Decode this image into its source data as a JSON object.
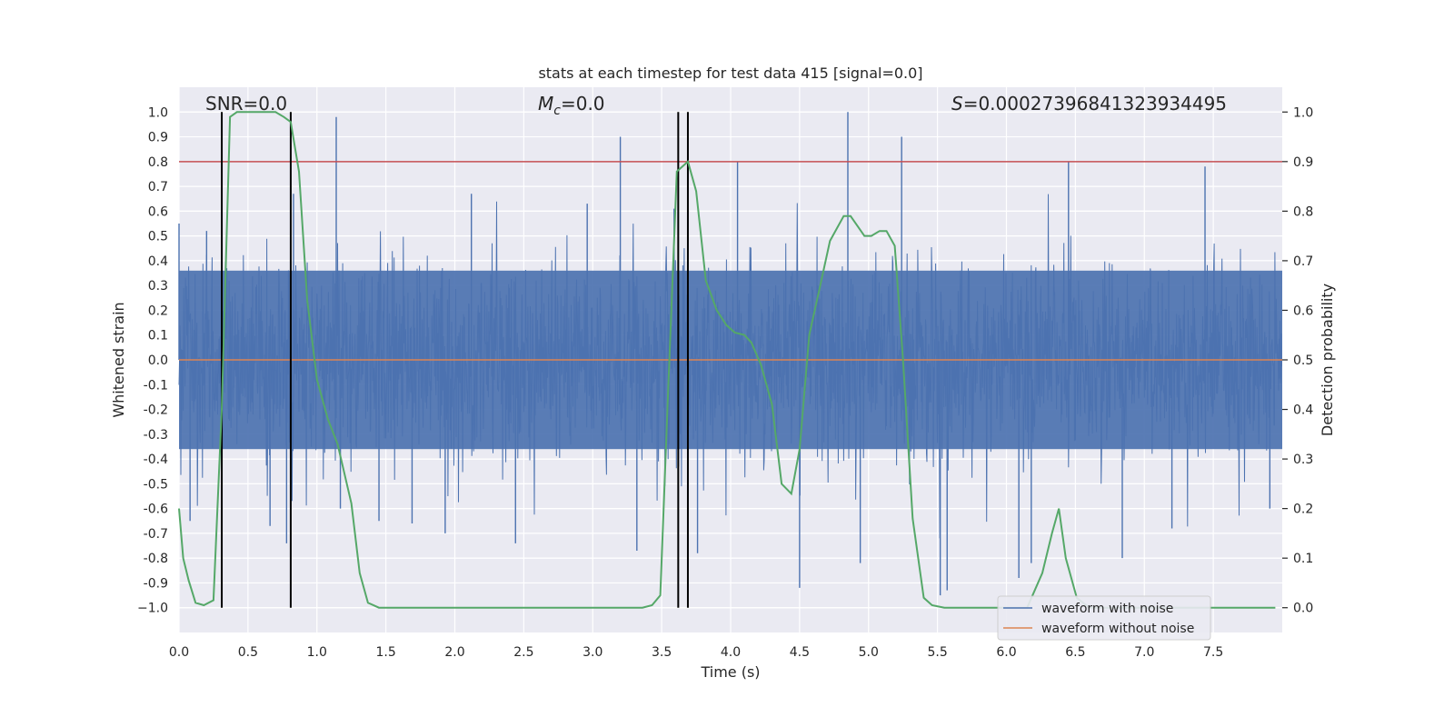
{
  "chart_data": {
    "type": "line",
    "title": "stats at each timestep for test data 415 [signal=0.0]",
    "xlabel": "Time (s)",
    "ylabel": "Whitened strain",
    "y2label": "Detection probability",
    "xlim": [
      0.0,
      8.0
    ],
    "ylim": [
      -1.1,
      1.1
    ],
    "y2lim": [
      -0.05,
      1.05
    ],
    "grid": true,
    "background": "#eaeaf2",
    "x_ticks": [
      0.0,
      0.5,
      1.0,
      1.5,
      2.0,
      2.5,
      3.0,
      3.5,
      4.0,
      4.5,
      5.0,
      5.5,
      6.0,
      6.5,
      7.0,
      7.5
    ],
    "x_tick_labels": [
      "0.0",
      "0.5",
      "1.0",
      "1.5",
      "2.0",
      "2.5",
      "3.0",
      "3.5",
      "4.0",
      "4.5",
      "5.0",
      "5.5",
      "6.0",
      "6.5",
      "7.0",
      "7.5"
    ],
    "y_ticks": [
      1.0,
      0.9,
      0.8,
      0.7,
      0.6,
      0.5,
      0.4,
      0.3,
      0.2,
      0.1,
      0.0,
      -0.1,
      -0.2,
      -0.3,
      -0.4,
      -0.5,
      -0.6,
      -0.7,
      -0.8,
      -0.9,
      -1.0
    ],
    "y_tick_labels": [
      "1.0",
      "0.9",
      "0.8",
      "0.7",
      "0.6",
      "0.5",
      "0.4",
      "0.3",
      "0.2",
      "0.1",
      "0.0",
      "-0.1",
      "-0.2",
      "-0.3",
      "-0.4",
      "-0.5",
      "-0.6",
      "-0.7",
      "-0.8",
      "-0.9",
      "−1.0"
    ],
    "y2_ticks": [
      1.0,
      0.9,
      0.8,
      0.7,
      0.6,
      0.5,
      0.4,
      0.3,
      0.2,
      0.1,
      0.0
    ],
    "y2_tick_labels": [
      "1.0",
      "0.9",
      "0.8",
      "0.7",
      "0.6",
      "0.5",
      "0.4",
      "0.3",
      "0.2",
      "0.1",
      "0.0"
    ],
    "annotations": {
      "snr": "SNR=0.0",
      "mc": "=0.0",
      "mc_symbol": "M",
      "mc_sub": "c",
      "s": "=0.00027396841323934495",
      "s_symbol": "S"
    },
    "series": [
      {
        "name": "waveform with noise",
        "color": "#4c72b0",
        "axis": "left",
        "style": "noise",
        "amplitude_envelope": 0.35,
        "spikes": [
          {
            "x": 0.0,
            "y": 0.55
          },
          {
            "x": 0.08,
            "y": -0.65
          },
          {
            "x": 0.2,
            "y": 0.52
          },
          {
            "x": 0.31,
            "y": -0.55
          },
          {
            "x": 0.66,
            "y": -0.67
          },
          {
            "x": 0.78,
            "y": -0.74
          },
          {
            "x": 0.83,
            "y": 0.67
          },
          {
            "x": 1.14,
            "y": 0.98
          },
          {
            "x": 1.17,
            "y": -0.6
          },
          {
            "x": 1.45,
            "y": -0.65
          },
          {
            "x": 1.69,
            "y": -0.66
          },
          {
            "x": 1.93,
            "y": -0.7
          },
          {
            "x": 2.12,
            "y": 0.67
          },
          {
            "x": 2.44,
            "y": -0.74
          },
          {
            "x": 2.96,
            "y": 0.63
          },
          {
            "x": 3.2,
            "y": 0.9
          },
          {
            "x": 3.32,
            "y": -0.77
          },
          {
            "x": 3.59,
            "y": 0.61
          },
          {
            "x": 3.76,
            "y": -0.78
          },
          {
            "x": 4.05,
            "y": 0.8
          },
          {
            "x": 4.5,
            "y": -0.92
          },
          {
            "x": 4.85,
            "y": 1.0
          },
          {
            "x": 4.94,
            "y": -0.82
          },
          {
            "x": 5.24,
            "y": 0.9
          },
          {
            "x": 5.52,
            "y": -0.95
          },
          {
            "x": 5.57,
            "y": -0.93
          },
          {
            "x": 6.09,
            "y": -0.88
          },
          {
            "x": 6.18,
            "y": -0.82
          },
          {
            "x": 6.45,
            "y": 0.8
          },
          {
            "x": 6.84,
            "y": -0.8
          },
          {
            "x": 7.2,
            "y": -0.68
          },
          {
            "x": 7.44,
            "y": 0.78
          },
          {
            "x": 7.91,
            "y": -0.6
          }
        ]
      },
      {
        "name": "waveform without noise",
        "color": "#dd8452",
        "axis": "left",
        "x": [
          0.0,
          8.0
        ],
        "y": [
          0.0,
          0.0
        ]
      },
      {
        "name": "",
        "color": "#55a868",
        "axis": "right",
        "x": [
          0.0,
          0.03,
          0.07,
          0.12,
          0.18,
          0.25,
          0.31,
          0.37,
          0.42,
          0.5,
          0.6,
          0.7,
          0.76,
          0.81,
          0.87,
          0.93,
          1.0,
          1.08,
          1.15,
          1.25,
          1.31,
          1.37,
          1.45,
          1.6,
          2.0,
          2.5,
          3.0,
          3.36,
          3.43,
          3.49,
          3.55,
          3.61,
          3.69,
          3.75,
          3.82,
          3.9,
          3.97,
          4.03,
          4.1,
          4.15,
          4.22,
          4.3,
          4.37,
          4.44,
          4.5,
          4.57,
          4.65,
          4.72,
          4.82,
          4.87,
          4.92,
          4.97,
          5.02,
          5.08,
          5.13,
          5.19,
          5.25,
          5.32,
          5.4,
          5.46,
          5.55,
          6.0,
          6.15,
          6.26,
          6.33,
          6.38,
          6.43,
          6.51,
          6.6,
          7.0,
          7.5,
          7.95
        ],
        "y": [
          0.2,
          0.1,
          0.055,
          0.01,
          0.005,
          0.015,
          0.4,
          0.99,
          1.0,
          1.0,
          1.0,
          1.0,
          0.99,
          0.98,
          0.88,
          0.62,
          0.46,
          0.38,
          0.33,
          0.21,
          0.07,
          0.01,
          0.0,
          0.0,
          0.0,
          0.0,
          0.0,
          0.0,
          0.005,
          0.025,
          0.46,
          0.88,
          0.9,
          0.84,
          0.66,
          0.6,
          0.57,
          0.555,
          0.55,
          0.535,
          0.49,
          0.41,
          0.25,
          0.23,
          0.32,
          0.55,
          0.65,
          0.74,
          0.79,
          0.79,
          0.77,
          0.75,
          0.75,
          0.76,
          0.76,
          0.73,
          0.5,
          0.18,
          0.02,
          0.005,
          0.0,
          0.0,
          0.0,
          0.07,
          0.15,
          0.2,
          0.1,
          0.02,
          0.0,
          0.0,
          0.0,
          0.0
        ]
      }
    ],
    "hlines": [
      {
        "y": 0.9,
        "axis": "right",
        "color": "#c44e52"
      }
    ],
    "vlines": [
      {
        "x": 0.31,
        "y2_range": [
          0.0,
          1.0
        ],
        "color": "#000000"
      },
      {
        "x": 0.81,
        "y2_range": [
          0.0,
          1.0
        ],
        "color": "#000000"
      },
      {
        "x": 3.62,
        "y2_range": [
          0.0,
          1.0
        ],
        "color": "#000000"
      },
      {
        "x": 3.69,
        "y2_range": [
          0.0,
          1.0
        ],
        "color": "#000000"
      }
    ],
    "legend": {
      "placement": "lower-right",
      "entries": [
        {
          "label": "waveform with noise",
          "color": "#4c72b0"
        },
        {
          "label": "waveform without noise",
          "color": "#dd8452"
        }
      ]
    }
  }
}
